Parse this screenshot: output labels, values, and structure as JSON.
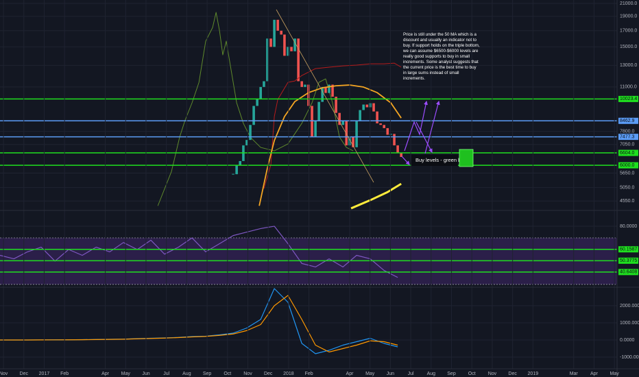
{
  "chart_data": [
    {
      "type": "candlestick",
      "log_scale": true,
      "grid": true,
      "xlim": [
        -0.17,
        30.13
      ],
      "ylim": [
        4276,
        21560
      ],
      "yticks": [
        {
          "value": 21000,
          "label": "21000.0"
        },
        {
          "value": 19000,
          "label": "19000.0"
        },
        {
          "value": 17000,
          "label": "17000.0"
        },
        {
          "value": 15000,
          "label": "15000.0"
        },
        {
          "value": 13000,
          "label": "13000.0"
        },
        {
          "value": 11000,
          "label": "11000.0"
        },
        {
          "value": 7800,
          "label": "7800.0"
        },
        {
          "value": 7050,
          "label": "7050.0"
        },
        {
          "value": 5650,
          "label": "5650.0"
        },
        {
          "value": 5050,
          "label": "5050.0"
        },
        {
          "value": 4550,
          "label": "4550.0"
        }
      ],
      "up_color": "#26a69a",
      "down_color": "#ef5350",
      "x": [
        11.28,
        11.45,
        11.62,
        11.78,
        11.95,
        12.12,
        12.29,
        12.46,
        12.63,
        12.79,
        12.96,
        13.13,
        13.3,
        13.47,
        13.64,
        13.8,
        13.97,
        14.14,
        14.31,
        14.48,
        14.65,
        14.81,
        14.98,
        15.15,
        15.32,
        15.49,
        15.66,
        15.82,
        15.99,
        16.16,
        16.33,
        16.5,
        16.67,
        16.84,
        17.0,
        17.17,
        17.34,
        17.51,
        17.68,
        17.85,
        18.01,
        18.18,
        18.35,
        18.52,
        18.69,
        18.86,
        19.02,
        19.19,
        19.36,
        19.53
      ],
      "close": [
        5600,
        6000,
        6200,
        7000,
        7300,
        8200,
        9500,
        10000,
        11000,
        11500,
        16000,
        15000,
        18500,
        17000,
        16500,
        14000,
        15000,
        14500,
        16000,
        11500,
        11000,
        11200,
        9500,
        7500,
        8500,
        9800,
        11000,
        10500,
        11200,
        10200,
        9000,
        8200,
        8500,
        7000,
        7500,
        6900,
        8500,
        9200,
        9600,
        9400,
        9700,
        9100,
        8300,
        8200,
        8000,
        7600,
        7650,
        7000,
        6600,
        6400
      ],
      "overlays": [
        {
          "color": "#5f8a2c",
          "x": [
            7.58,
            8.25,
            8.65,
            8.92,
            9.26,
            9.6,
            9.93,
            10.27,
            10.44,
            10.61,
            10.77,
            10.94,
            11.11,
            11.45,
            11.78,
            12.12,
            12.63,
            13.3,
            13.97,
            14.65,
            15.15,
            15.49,
            15.82,
            16.16,
            16.5,
            16.84,
            17.17
          ],
          "values": [
            4385,
            5720,
            7460,
            8510,
            9730,
            11400,
            15680,
            17430,
            19590,
            16980,
            14100,
            15680,
            13370,
            9730,
            8300,
            7460,
            6890,
            6710,
            7080,
            8300,
            9730,
            11400,
            11710,
            9730,
            7460,
            6890,
            6710
          ]
        },
        {
          "color": "#b71c1c",
          "x": [
            12.79,
            13.13,
            13.3,
            13.47,
            13.97,
            14.31,
            14.65,
            15.32,
            15.99,
            16.67,
            17.34,
            18.01,
            18.69,
            19.19,
            19.53
          ],
          "values": [
            5010,
            6030,
            8750,
            9987,
            11400,
            11525,
            12020,
            12680,
            12820,
            12950,
            13030,
            13160,
            13160,
            13230,
            12820
          ]
        },
        {
          "color": "#f5a623",
          "x": [
            12.56,
            12.96,
            13.3,
            13.8,
            14.31,
            14.98,
            15.66,
            16.33,
            17.0,
            17.68,
            18.35,
            19.02,
            19.53
          ],
          "values": [
            4385,
            5875,
            7265,
            8750,
            9830,
            10530,
            10930,
            11100,
            11170,
            10990,
            10530,
            9730,
            8650
          ]
        },
        {
          "color": "#ffeb3b",
          "x": [
            17.07,
            18.01,
            18.86,
            19.53
          ],
          "values": [
            4300,
            4580,
            4875,
            5200
          ]
        }
      ],
      "levels": [
        {
          "value": 10023.4,
          "label": "10023.4",
          "color": "#1fe01f"
        },
        {
          "value": 8462.9,
          "label": "8462.9",
          "color": "#5b9cf6"
        },
        {
          "value": 7477.3,
          "label": "7477.3",
          "color": "#5b9cf6"
        },
        {
          "value": 6604.0,
          "label": "6604.0",
          "color": "#1fe01f"
        },
        {
          "value": 6000.0,
          "label": "6000.0",
          "color": "#1fe01f"
        }
      ],
      "annotations": {
        "note": "Price is still under the 50 MA which is a discount and usually an indicator not to buy. If support holds on the triple bottom, we can assume $6500-$6000 levels are really good supports to buy in small increments. Some analyst suggests that the current price is the best time to buy in large sums instead of small increments.",
        "buy_label": "Buy levels - green box."
      }
    },
    {
      "type": "line",
      "grid": true,
      "xlim": [
        -0.17,
        30.13
      ],
      "ylim": [
        28.2,
        91.8
      ],
      "yticks": [
        {
          "value": 80,
          "label": "80.0000"
        }
      ],
      "band": [
        70,
        30
      ],
      "band_color": "#4a2a7a",
      "levels": [
        {
          "value": 60.1587,
          "label": "60.1587",
          "color": "#1fe01f"
        },
        {
          "value": 50.3775,
          "label": "50.3775",
          "color": "#1fe01f"
        },
        {
          "value": 40.6408,
          "label": "40.6408",
          "color": "#1fe01f"
        }
      ],
      "series": [
        {
          "color": "#7e57c2",
          "x": [
            -0.17,
            0.51,
            1.18,
            1.85,
            2.53,
            3.2,
            3.87,
            4.55,
            5.22,
            5.89,
            6.57,
            7.24,
            7.91,
            8.59,
            9.26,
            9.93,
            10.61,
            11.28,
            11.95,
            12.63,
            13.3,
            13.97,
            14.65,
            15.32,
            15.99,
            16.67,
            17.34,
            18.01,
            18.69,
            19.36
          ],
          "values": [
            55,
            52,
            58,
            62,
            50,
            60,
            55,
            62,
            58,
            66,
            60,
            68,
            56,
            62,
            70,
            58,
            65,
            72,
            75,
            78,
            80,
            65,
            48,
            45,
            52,
            45,
            55,
            52,
            42,
            36
          ]
        }
      ]
    },
    {
      "type": "line",
      "grid": true,
      "xlim": [
        -0.17,
        30.13
      ],
      "ylim": [
        -1640,
        3040
      ],
      "yticks": [
        {
          "value": 2000,
          "label": "2000.0000"
        },
        {
          "value": 1000,
          "label": "1000.0000"
        },
        {
          "value": 0,
          "label": "0.0000"
        },
        {
          "value": -1000,
          "label": "-1000.0000"
        }
      ],
      "xticks": [
        {
          "value": 0,
          "label": "Nov"
        },
        {
          "value": 1,
          "label": "Dec"
        },
        {
          "value": 2,
          "label": "2017"
        },
        {
          "value": 3,
          "label": "Feb"
        },
        {
          "value": 5,
          "label": "Apr"
        },
        {
          "value": 6,
          "label": "May"
        },
        {
          "value": 7,
          "label": "Jun"
        },
        {
          "value": 8,
          "label": "Jul"
        },
        {
          "value": 9,
          "label": "Aug"
        },
        {
          "value": 10,
          "label": "Sep"
        },
        {
          "value": 11,
          "label": "Oct"
        },
        {
          "value": 12,
          "label": "Nov"
        },
        {
          "value": 13,
          "label": "Dec"
        },
        {
          "value": 14,
          "label": "2018"
        },
        {
          "value": 15,
          "label": "Feb"
        },
        {
          "value": 17,
          "label": "Apr"
        },
        {
          "value": 18,
          "label": "May"
        },
        {
          "value": 19,
          "label": "Jun"
        },
        {
          "value": 20,
          "label": "Jul"
        },
        {
          "value": 21,
          "label": "Aug"
        },
        {
          "value": 22,
          "label": "Sep"
        },
        {
          "value": 23,
          "label": "Oct"
        },
        {
          "value": 24,
          "label": "Nov"
        },
        {
          "value": 25,
          "label": "Dec"
        },
        {
          "value": 26,
          "label": "2019"
        },
        {
          "value": 28,
          "label": "Mar"
        },
        {
          "value": 29,
          "label": "Apr"
        },
        {
          "value": 30,
          "label": "May"
        }
      ],
      "series": [
        {
          "color": "#2196f3",
          "x": [
            -0.17,
            0.51,
            1.18,
            1.85,
            2.53,
            3.2,
            3.87,
            4.55,
            5.22,
            5.89,
            6.57,
            7.24,
            7.91,
            8.59,
            9.26,
            9.93,
            10.61,
            11.28,
            11.95,
            12.63,
            13.3,
            13.97,
            14.65,
            15.32,
            15.99,
            16.67,
            17.34,
            18.01,
            18.69,
            19.36
          ],
          "values": [
            0,
            0,
            0,
            5,
            10,
            10,
            20,
            30,
            40,
            50,
            80,
            100,
            120,
            150,
            200,
            220,
            300,
            400,
            700,
            1200,
            3000,
            2200,
            -200,
            -800,
            -600,
            -300,
            -100,
            100,
            -200,
            -400
          ]
        },
        {
          "color": "#ff9800",
          "x": [
            -0.17,
            0.51,
            1.18,
            1.85,
            2.53,
            3.2,
            3.87,
            4.55,
            5.22,
            5.89,
            6.57,
            7.24,
            7.91,
            8.59,
            9.26,
            9.93,
            10.61,
            11.28,
            11.95,
            12.63,
            13.3,
            13.97,
            14.65,
            15.32,
            15.99,
            16.67,
            17.34,
            18.01,
            18.69,
            19.36
          ],
          "values": [
            0,
            0,
            0,
            5,
            8,
            10,
            15,
            25,
            35,
            45,
            70,
            90,
            110,
            140,
            180,
            210,
            270,
            350,
            550,
            900,
            2000,
            2600,
            1200,
            -300,
            -700,
            -500,
            -300,
            -50,
            -100,
            -300
          ]
        }
      ]
    }
  ]
}
